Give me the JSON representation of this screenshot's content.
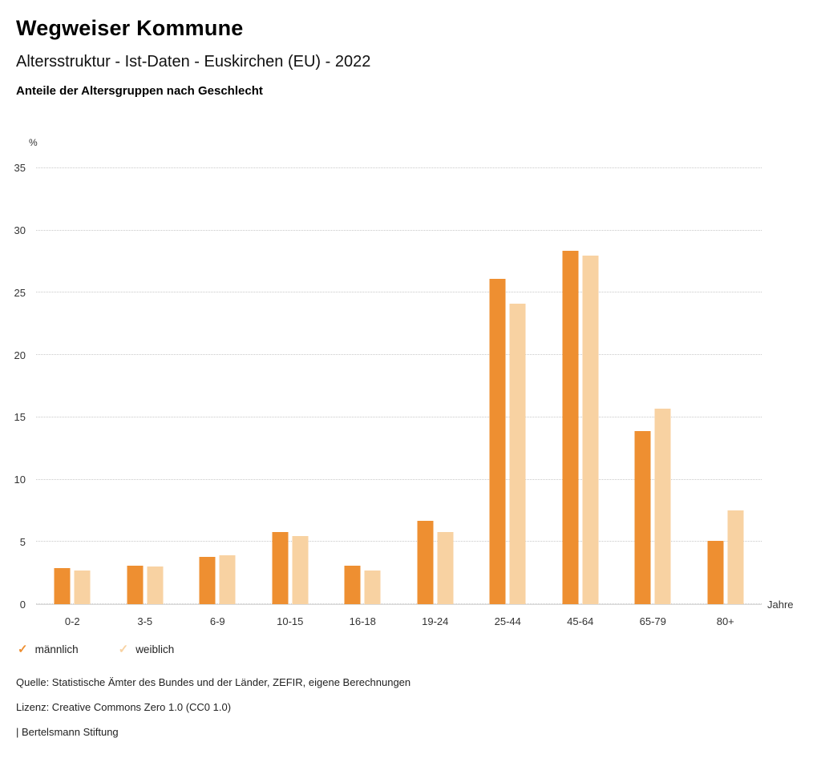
{
  "header": {
    "title": "Wegweiser Kommune",
    "subtitle": "Altersstruktur - Ist-Daten - Euskirchen (EU) - 2022",
    "heading": "Anteile der Altersgruppen nach Geschlecht"
  },
  "chart_data": {
    "type": "bar",
    "categories": [
      "0-2",
      "3-5",
      "6-9",
      "10-15",
      "16-18",
      "19-24",
      "25-44",
      "45-64",
      "65-79",
      "80+"
    ],
    "series": [
      {
        "name": "männlich",
        "color": "#ee8f31",
        "values": [
          2.9,
          3.1,
          3.8,
          5.8,
          3.1,
          6.7,
          26.1,
          28.4,
          13.9,
          5.1
        ]
      },
      {
        "name": "weiblich",
        "color": "#f8d2a2",
        "values": [
          2.7,
          3.0,
          3.9,
          5.5,
          2.7,
          5.8,
          24.1,
          28.0,
          15.7,
          7.5
        ]
      }
    ],
    "title": "Anteile der Altersgruppen nach Geschlecht",
    "xlabel": "Jahre",
    "ylabel": "%",
    "ylim": [
      0,
      35
    ],
    "yticks": [
      0,
      5,
      10,
      15,
      20,
      25,
      30,
      35
    ],
    "grid": true,
    "legend_position": "bottom"
  },
  "legend": {
    "check": "✓"
  },
  "footer": {
    "source": "Quelle: Statistische Ämter des Bundes und der Länder, ZEFIR, eigene Berechnungen",
    "license": "Lizenz: Creative Commons Zero 1.0 (CC0 1.0)",
    "attribution": "| Bertelsmann Stiftung"
  }
}
